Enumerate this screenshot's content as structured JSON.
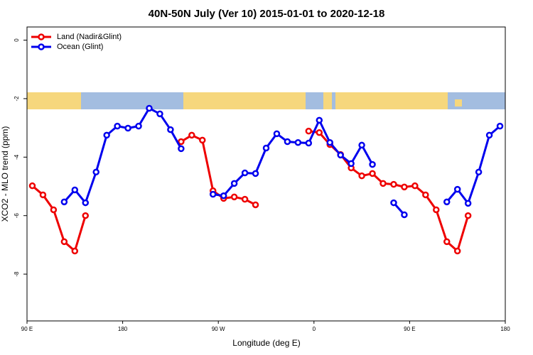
{
  "chart_data": {
    "type": "line",
    "title": "40N-50N July (Ver 10)   2015-01-01 to 2020-12-18",
    "x_label": "Longitude (deg E)",
    "y_label": "XCO2 - MLO trend (ppm)",
    "x": [
      95,
      105,
      115,
      125,
      135,
      145,
      155,
      165,
      175,
      185,
      195,
      205,
      215,
      225,
      235,
      245,
      255,
      265,
      275,
      285,
      295,
      305,
      315,
      325,
      335,
      345,
      355,
      365,
      375,
      385,
      395,
      405,
      415,
      425,
      435,
      445,
      455,
      465,
      475,
      485,
      495,
      505,
      515,
      525,
      535
    ],
    "series": [
      {
        "name": "Land (Nadir&Glint)",
        "color": "#ee0000",
        "values": [
          -4.98,
          -5.29,
          -5.8,
          -6.89,
          -7.21,
          -6.0,
          null,
          null,
          null,
          null,
          null,
          null,
          null,
          null,
          -3.47,
          -3.25,
          -3.42,
          -5.15,
          -5.41,
          -5.36,
          -5.44,
          -5.63,
          null,
          null,
          null,
          null,
          -3.11,
          -3.16,
          -3.57,
          -3.91,
          -4.37,
          -4.64,
          -4.56,
          -4.9,
          -4.93,
          -5.02,
          -4.98,
          -5.29,
          -5.8,
          -6.89,
          -7.21,
          -6.0,
          null,
          null,
          null
        ]
      },
      {
        "name": "Ocean (Glint)",
        "color": "#0000ee",
        "values": [
          null,
          null,
          null,
          -5.53,
          -5.12,
          -5.56,
          -4.51,
          -3.25,
          -2.94,
          -3.01,
          -2.94,
          -2.33,
          -2.52,
          -3.06,
          -3.71,
          null,
          null,
          -5.27,
          -5.32,
          -4.9,
          -4.54,
          -4.56,
          -3.69,
          -3.2,
          -3.47,
          -3.5,
          -3.52,
          -2.74,
          -3.5,
          -3.93,
          -4.22,
          -3.59,
          -4.25,
          null,
          -5.56,
          -5.97,
          null,
          null,
          null,
          -5.53,
          -5.1,
          -5.58,
          -4.51,
          -3.25,
          -2.94
        ]
      }
    ],
    "xlim": [
      90,
      540
    ],
    "xticks": [
      {
        "value": 90,
        "label": "90 E"
      },
      180,
      {
        "value": 270,
        "label": "90 W"
      },
      {
        "value": 360,
        "label": "0"
      },
      {
        "value": 450,
        "label": "90 E"
      },
      {
        "value": 540,
        "label": "180"
      }
    ],
    "ylim": [
      -9.6,
      0.45
    ],
    "yticks": [
      0,
      -2,
      -4,
      -6,
      -8
    ],
    "legend": "top-left"
  }
}
